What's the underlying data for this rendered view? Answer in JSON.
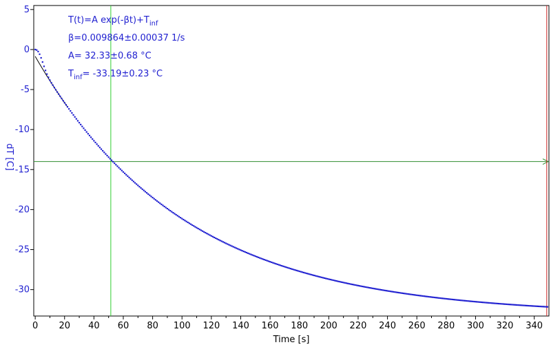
{
  "chart_data": {
    "type": "scatter",
    "title": "",
    "xlabel": "Time [s]",
    "ylabel": "dT [C]",
    "xlim": [
      -1,
      350
    ],
    "ylim": [
      -33.3,
      5.5
    ],
    "x_ticks": [
      0,
      20,
      40,
      60,
      80,
      100,
      120,
      140,
      160,
      180,
      200,
      220,
      240,
      260,
      280,
      300,
      320,
      340
    ],
    "y_ticks": [
      5,
      0,
      -5,
      -10,
      -15,
      -20,
      -25,
      -30
    ],
    "x_tick_labels": [
      "0",
      "20",
      "40",
      "60",
      "80",
      "100",
      "120",
      "140",
      "160",
      "180",
      "200",
      "220",
      "240",
      "260",
      "280",
      "300",
      "320",
      "340"
    ],
    "y_tick_labels": [
      "5",
      "0",
      "-5",
      "-10",
      "-15",
      "-20",
      "-25",
      "-30"
    ],
    "grid": false,
    "model": {
      "A": 32.33,
      "beta": 0.009864,
      "T_inf": -33.19
    },
    "series": [
      {
        "color": "#1f1fd0",
        "marker": "point",
        "x_start": 0,
        "x_end": 349,
        "x_step": 1,
        "initial_lag_s": 5
      },
      {
        "color": "#000000",
        "style": "line",
        "x_start": 0,
        "x_end": 22
      }
    ],
    "cursors": [
      {
        "orientation": "vertical",
        "x": 51.5,
        "color": "#2ecc2e"
      },
      {
        "orientation": "horizontal",
        "y": -14.0,
        "color": "#2e8b2e"
      },
      {
        "orientation": "vertical",
        "x": 348.5,
        "color": "#cc2222"
      }
    ],
    "annotations": {
      "line1_main": "T(t)=A exp(-βt)+T",
      "line1_sub": "inf",
      "line2": "β=0.009864±0.00037 1/s",
      "line3": "A= 32.33±0.68 °C",
      "line4_main": "T",
      "line4_sub": "inf",
      "line4_rest": "= -33.19±0.23 °C"
    }
  }
}
